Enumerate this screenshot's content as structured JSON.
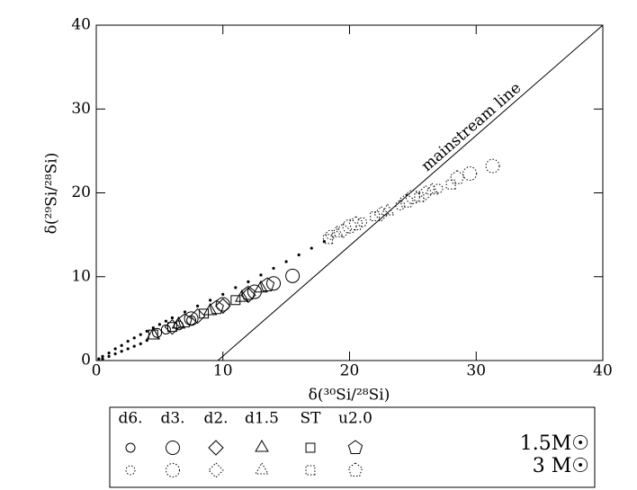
{
  "chart_data": {
    "type": "scatter",
    "xlabel": "δ(³⁰Si/²⁸Si)",
    "ylabel": "δ(²⁹Si/²⁸Si)",
    "xlim": [
      0,
      40
    ],
    "ylim": [
      0,
      40
    ],
    "xticks": [
      0,
      10,
      20,
      30,
      40
    ],
    "yticks": [
      0,
      10,
      20,
      30,
      40
    ],
    "color": "#000000",
    "mainstream": {
      "label": "mainstream line",
      "x": [
        9.6,
        40
      ],
      "y": [
        0,
        40
      ]
    },
    "tracks": [
      {
        "x": [
          0.2,
          0.5,
          1,
          1.5,
          2,
          2.5,
          3,
          3.5,
          4,
          4.5,
          5,
          5.5,
          6,
          7,
          8,
          9,
          10,
          11,
          12,
          13,
          14,
          15,
          16,
          17,
          18
        ],
        "y": [
          0.2,
          0.5,
          0.9,
          1.4,
          1.8,
          2.3,
          2.7,
          3.1,
          3.5,
          3.9,
          4.3,
          4.7,
          5.1,
          5.8,
          6.5,
          7.2,
          7.9,
          8.7,
          9.4,
          10.2,
          11,
          11.8,
          12.6,
          13.4,
          14.2
        ]
      },
      {
        "x": [
          0.5,
          1,
          1.5,
          2,
          2.5,
          3,
          3.5,
          4
        ],
        "y": [
          0.2,
          0.5,
          0.8,
          1.1,
          1.4,
          1.7,
          2.0,
          2.4
        ]
      }
    ],
    "masses": [
      {
        "label": "1.5M☉",
        "dashed": false
      },
      {
        "label": "3 M☉",
        "dashed": true
      }
    ],
    "models": [
      {
        "label": "d6.",
        "symbol": "circle-small",
        "series": [
          {
            "x": [
              4.8,
              5.5,
              6.5,
              7.5
            ],
            "y": [
              3.3,
              3.7,
              4.2,
              4.8
            ]
          },
          {
            "x": [
              18.5,
              21,
              24,
              27
            ],
            "y": [
              15,
              16.5,
              18.5,
              20.5
            ]
          }
        ]
      },
      {
        "label": "d3.",
        "symbol": "circle-large",
        "series": [
          {
            "x": [
              7.5,
              10,
              12.5,
              14,
              15.5
            ],
            "y": [
              5.0,
              6.7,
              8.2,
              9.2,
              10.1
            ]
          },
          {
            "x": [
              20,
              25,
              29.5,
              31.3
            ],
            "y": [
              16,
              19.5,
              22.3,
              23.2
            ]
          }
        ]
      },
      {
        "label": "d2.",
        "symbol": "diamond",
        "series": [
          {
            "x": [
              6,
              8,
              10,
              12
            ],
            "y": [
              4,
              5.3,
              6.5,
              7.8
            ]
          },
          {
            "x": [
              19.5,
              22.5,
              26
            ],
            "y": [
              15.5,
              17.5,
              20
            ]
          }
        ]
      },
      {
        "label": "d1.5",
        "symbol": "triangle",
        "series": [
          {
            "x": [
              4.5,
              6.5,
              9,
              11.5,
              13
            ],
            "y": [
              3,
              4.3,
              5.9,
              7.5,
              8.6
            ]
          },
          {
            "x": [
              19,
              23,
              26.5
            ],
            "y": [
              15.2,
              17.8,
              20.3
            ]
          }
        ]
      },
      {
        "label": "ST",
        "symbol": "square",
        "series": [
          {
            "x": [
              4.5,
              6,
              8.5,
              11
            ],
            "y": [
              3.1,
              4,
              5.6,
              7.2
            ]
          },
          {
            "x": [
              18.3,
              22,
              25.5,
              28
            ],
            "y": [
              14.5,
              17.2,
              19.5,
              21
            ]
          }
        ]
      },
      {
        "label": "u2.0",
        "symbol": "pentagon",
        "series": [
          {
            "x": [
              7,
              9.5,
              12,
              13.5
            ],
            "y": [
              4.7,
              6.3,
              8,
              9
            ]
          },
          {
            "x": [
              20.5,
              24.5,
              28.5
            ],
            "y": [
              16.3,
              19,
              21.8
            ]
          }
        ]
      }
    ]
  }
}
